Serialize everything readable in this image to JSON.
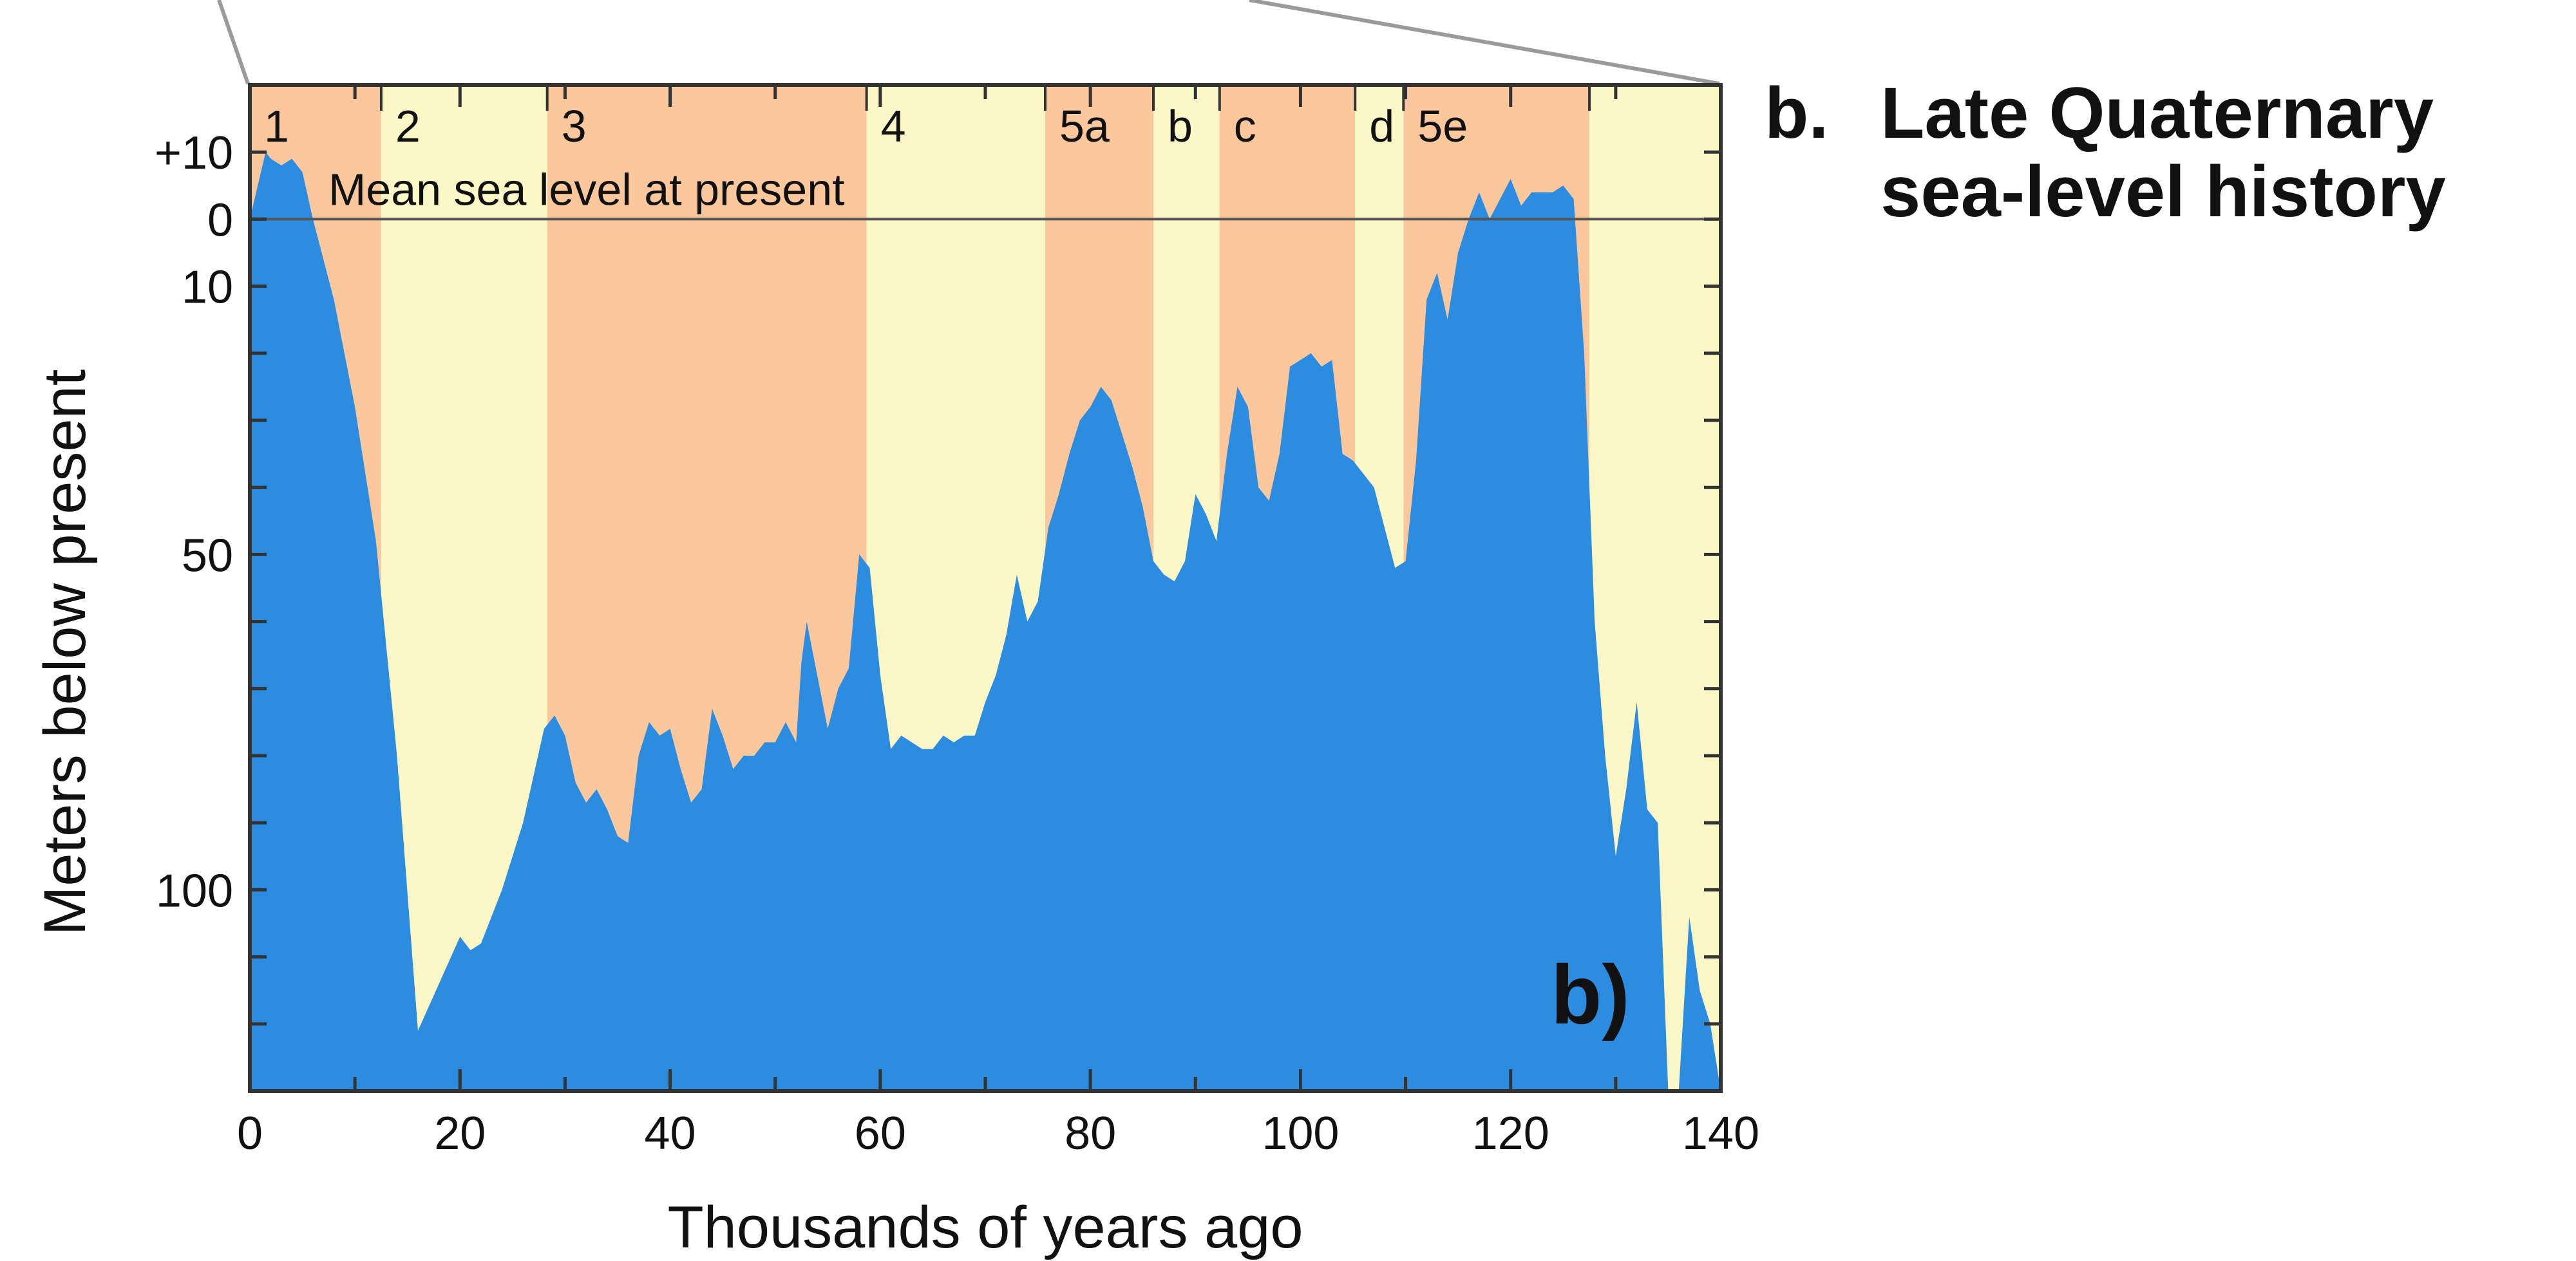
{
  "figure_title": {
    "prefix": "b.",
    "line1": "Late Quaternary",
    "line2": "sea-level history"
  },
  "panel_letter": "b)",
  "colors": {
    "interglacial_band": "#fbc89d",
    "glacial_band": "#fcf7c6",
    "sea_level_fill": "#2b8ce0",
    "axis": "#333333",
    "msl_line": "#555555"
  },
  "chart_data": {
    "type": "area",
    "title": "Late Quaternary sea-level history",
    "xlabel": "Thousands of years ago",
    "ylabel": "Meters below present",
    "xlim": [
      0,
      140
    ],
    "ylim": [
      130,
      -20
    ],
    "x_ticks": [
      "0",
      "20",
      "40",
      "60",
      "80",
      "100",
      "120",
      "140"
    ],
    "y_ticks": [
      {
        "value": -10,
        "label": "+10"
      },
      {
        "value": 0,
        "label": "0"
      },
      {
        "value": 10,
        "label": "10"
      },
      {
        "value": 50,
        "label": "50"
      },
      {
        "value": 100,
        "label": "100"
      }
    ],
    "reference_line": {
      "value": 0,
      "label": "Mean sea level at present"
    },
    "stages": [
      {
        "label": "1",
        "start": 0,
        "end": 12.5,
        "kind": "interglacial"
      },
      {
        "label": "2",
        "start": 12.5,
        "end": 28.3,
        "kind": "glacial"
      },
      {
        "label": "3",
        "start": 28.3,
        "end": 58.7,
        "kind": "interglacial"
      },
      {
        "label": "4",
        "start": 58.7,
        "end": 75.7,
        "kind": "glacial"
      },
      {
        "label": "5a",
        "start": 75.7,
        "end": 86.0,
        "kind": "interglacial"
      },
      {
        "label": "b",
        "start": 86.0,
        "end": 92.3,
        "kind": "glacial"
      },
      {
        "label": "c",
        "start": 92.3,
        "end": 105.2,
        "kind": "interglacial"
      },
      {
        "label": "d",
        "start": 105.2,
        "end": 109.8,
        "kind": "glacial"
      },
      {
        "label": "5e",
        "start": 109.8,
        "end": 127.5,
        "kind": "interglacial"
      },
      {
        "label": "",
        "start": 127.5,
        "end": 140,
        "kind": "glacial"
      }
    ],
    "x": [
      0,
      1.5,
      2,
      3,
      4,
      5,
      6,
      7,
      8,
      10,
      12,
      14,
      16,
      18,
      20,
      21,
      22,
      24,
      26,
      28,
      29,
      30,
      31,
      32,
      33,
      34,
      35,
      36,
      37,
      38,
      39,
      40,
      41,
      42,
      43,
      44,
      45,
      46,
      47,
      48,
      49,
      50,
      51,
      52,
      52.5,
      53,
      54,
      55,
      56,
      57,
      58,
      59,
      60,
      61,
      62,
      63,
      64,
      65,
      66,
      67,
      68,
      69,
      70,
      71,
      72,
      73,
      74,
      75,
      76,
      77,
      78,
      79,
      80,
      81,
      82,
      83,
      84,
      85,
      86,
      87,
      88,
      89,
      90,
      91,
      92,
      93,
      94,
      95,
      96,
      97,
      98,
      99,
      100,
      101,
      102,
      103,
      104,
      105,
      106,
      107,
      108,
      109,
      110,
      111,
      112,
      113,
      114,
      115,
      116,
      117,
      118,
      119,
      120,
      121,
      122,
      123,
      124,
      125,
      126,
      127,
      128,
      129,
      130,
      131,
      132,
      133,
      134,
      135,
      136,
      137,
      138,
      139,
      140
    ],
    "values": [
      0,
      -10,
      -9,
      -8,
      -9,
      -7,
      0,
      6,
      12,
      28,
      48,
      80,
      121,
      114,
      107,
      109,
      108,
      100,
      90,
      76,
      74,
      77,
      84,
      87,
      85,
      88,
      92,
      93,
      80,
      75,
      77,
      76,
      82,
      87,
      85,
      73,
      77,
      82,
      80,
      80,
      78,
      78,
      75,
      78,
      66,
      60,
      68,
      76,
      70,
      67,
      50,
      52,
      68,
      79,
      77,
      78,
      79,
      79,
      77,
      78,
      77,
      77,
      72,
      68,
      62,
      53,
      60,
      57,
      46,
      41,
      35,
      30,
      28,
      25,
      27,
      32,
      37,
      43,
      51,
      53,
      54,
      51,
      41,
      44,
      48,
      35,
      25,
      28,
      40,
      42,
      35,
      22,
      21,
      20,
      22,
      21,
      35,
      36,
      38,
      40,
      46,
      52,
      51,
      36,
      12,
      8,
      15,
      5,
      0,
      -4,
      0,
      -3,
      -6,
      -2,
      -4,
      -4,
      -4,
      -5,
      -3,
      20,
      60,
      80,
      95,
      85,
      72,
      88,
      90,
      130,
      131,
      104,
      115,
      120,
      131
    ]
  }
}
